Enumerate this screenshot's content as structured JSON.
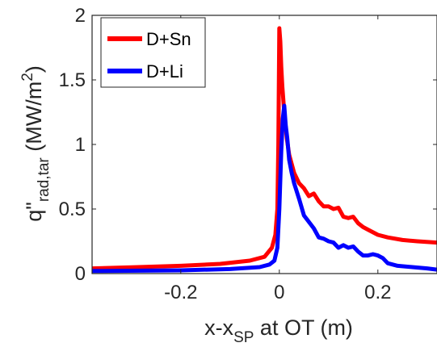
{
  "chart_data": {
    "type": "line",
    "title": "",
    "xlabel": {
      "main": "x-x",
      "sub": "SP",
      "rest": " at OT (m)"
    },
    "ylabel": {
      "main": "q\"",
      "sub": "rad,tar",
      "rest": " (MW/m",
      "sup": "2",
      "close": ")"
    },
    "xlim": [
      -0.38,
      0.32
    ],
    "ylim": [
      0,
      2
    ],
    "xticks": [
      -0.2,
      0,
      0.2
    ],
    "xtick_labels": [
      "-0.2",
      "0",
      "0.2"
    ],
    "yticks": [
      0,
      0.5,
      1,
      1.5,
      2
    ],
    "ytick_labels": [
      "0",
      "0.5",
      "1",
      "1.5",
      "2"
    ],
    "grid": false,
    "legend_position": "top-left",
    "series": [
      {
        "name": "D+Sn",
        "color": "#ff0000",
        "x": [
          -0.38,
          -0.3,
          -0.2,
          -0.12,
          -0.06,
          -0.03,
          -0.015,
          -0.008,
          -0.004,
          -0.002,
          0.0,
          0.002,
          0.004,
          0.006,
          0.01,
          0.015,
          0.02,
          0.03,
          0.04,
          0.05,
          0.06,
          0.07,
          0.08,
          0.09,
          0.1,
          0.11,
          0.12,
          0.13,
          0.14,
          0.15,
          0.16,
          0.17,
          0.18,
          0.2,
          0.22,
          0.25,
          0.28,
          0.32
        ],
        "y": [
          0.04,
          0.048,
          0.06,
          0.075,
          0.1,
          0.13,
          0.2,
          0.3,
          0.5,
          1.0,
          1.9,
          1.8,
          1.6,
          1.45,
          1.25,
          1.05,
          0.92,
          0.78,
          0.7,
          0.66,
          0.6,
          0.62,
          0.56,
          0.52,
          0.52,
          0.5,
          0.51,
          0.44,
          0.43,
          0.44,
          0.39,
          0.36,
          0.34,
          0.3,
          0.28,
          0.26,
          0.25,
          0.24
        ]
      },
      {
        "name": "D+Li",
        "color": "#0000ff",
        "x": [
          -0.38,
          -0.2,
          -0.1,
          -0.04,
          -0.02,
          -0.01,
          -0.004,
          0.0,
          0.004,
          0.007,
          0.01,
          0.013,
          0.016,
          0.02,
          0.025,
          0.03,
          0.04,
          0.05,
          0.06,
          0.07,
          0.08,
          0.09,
          0.1,
          0.11,
          0.12,
          0.13,
          0.14,
          0.15,
          0.16,
          0.17,
          0.18,
          0.19,
          0.2,
          0.21,
          0.22,
          0.24,
          0.27,
          0.3,
          0.32
        ],
        "y": [
          0.02,
          0.025,
          0.035,
          0.05,
          0.07,
          0.1,
          0.2,
          0.5,
          0.95,
          1.2,
          1.3,
          1.15,
          1.05,
          0.88,
          0.78,
          0.7,
          0.58,
          0.45,
          0.4,
          0.35,
          0.28,
          0.27,
          0.25,
          0.24,
          0.2,
          0.22,
          0.2,
          0.21,
          0.17,
          0.14,
          0.14,
          0.15,
          0.14,
          0.12,
          0.08,
          0.06,
          0.05,
          0.04,
          0.03
        ]
      }
    ]
  }
}
